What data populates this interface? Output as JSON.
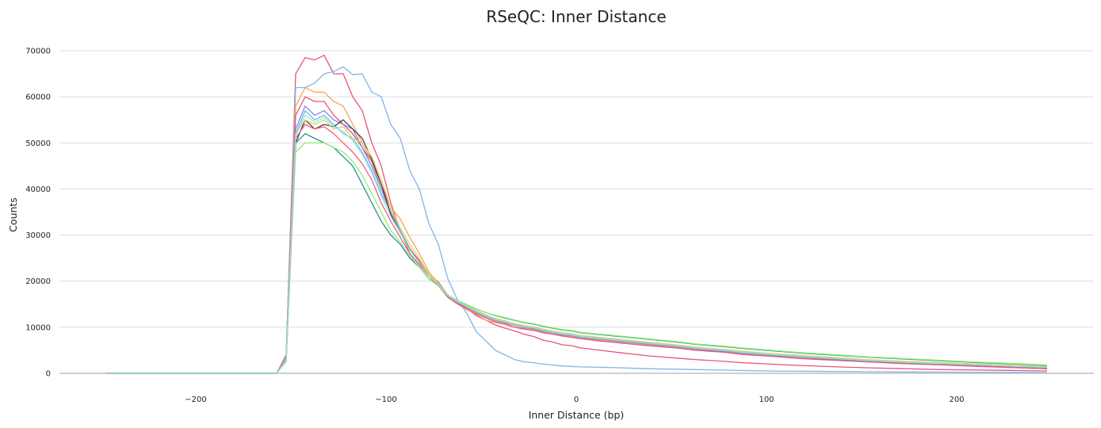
{
  "chart_data": {
    "type": "line",
    "title": "RSeQC: Inner Distance",
    "xlabel": "Inner Distance (bp)",
    "ylabel": "Counts",
    "xlim": [
      -250,
      250
    ],
    "ylim": [
      0,
      70000
    ],
    "xticks": [
      -200,
      -100,
      0,
      100,
      200
    ],
    "yticks": [
      0,
      10000,
      20000,
      30000,
      40000,
      50000,
      60000,
      70000
    ],
    "grid": true,
    "legend": "none",
    "x": [
      -247.5,
      -157.5,
      -152.5,
      -147.5,
      -142.5,
      -137.5,
      -132.5,
      -127.5,
      -122.5,
      -117.5,
      -112.5,
      -107.5,
      -102.5,
      -97.5,
      -92.5,
      -87.5,
      -82.5,
      -77.5,
      -72.5,
      -67.5,
      -62.5,
      -57.5,
      -52.5,
      -47.5,
      -42.5,
      -37.5,
      -32.5,
      -27.5,
      -22.5,
      -17.5,
      -12.5,
      -7.5,
      -2.5,
      2.5,
      12.5,
      22.5,
      37.5,
      52.5,
      62.5,
      77.5,
      87.5,
      102.5,
      117.5,
      137.5,
      152.5,
      172.5,
      192.5,
      212.5,
      232.5,
      247.5
    ],
    "series": [
      {
        "color": "#e8537a",
        "values": [
          0,
          0,
          4000,
          65000,
          68500,
          68000,
          69000,
          65000,
          65000,
          60000,
          57000,
          50000,
          45000,
          37000,
          31000,
          26000,
          23500,
          21500,
          19800,
          17000,
          15500,
          14000,
          12500,
          11500,
          10500,
          9800,
          9200,
          8500,
          8000,
          7200,
          6800,
          6200,
          6000,
          5500,
          5000,
          4500,
          3800,
          3300,
          3000,
          2600,
          2300,
          2000,
          1700,
          1400,
          1200,
          1000,
          800,
          700,
          600,
          500
        ]
      },
      {
        "color": "#7cb5ec",
        "values": [
          0,
          0,
          3500,
          62000,
          62000,
          63000,
          65000,
          65500,
          66500,
          64800,
          65000,
          61000,
          60000,
          54000,
          51000,
          44000,
          40000,
          32500,
          28000,
          20500,
          16000,
          13000,
          9000,
          7000,
          5000,
          4000,
          3000,
          2500,
          2300,
          2000,
          1800,
          1600,
          1500,
          1400,
          1300,
          1200,
          1000,
          900,
          800,
          700,
          600,
          500,
          450,
          400,
          350,
          300,
          250,
          200,
          200,
          150
        ]
      },
      {
        "color": "#f7a35c",
        "values": [
          0,
          0,
          3200,
          58000,
          62000,
          61000,
          61000,
          59000,
          58000,
          54000,
          50000,
          46000,
          40000,
          36000,
          33500,
          29500,
          26000,
          22000,
          19500,
          16500,
          15000,
          13800,
          12800,
          11500,
          11000,
          10500,
          10000,
          9800,
          9500,
          9000,
          8500,
          8200,
          8000,
          7600,
          7200,
          6800,
          6200,
          5600,
          5100,
          4600,
          4200,
          3800,
          3400,
          2900,
          2500,
          2200,
          1800,
          1500,
          1200,
          1000
        ]
      },
      {
        "color": "#e8537a",
        "values": [
          0,
          0,
          3000,
          56000,
          60000,
          59000,
          59000,
          56000,
          54000,
          52000,
          49000,
          46000,
          41000,
          36000,
          31000,
          27000,
          24500,
          21000,
          19000,
          16500,
          15200,
          14000,
          13000,
          12000,
          11200,
          10800,
          10000,
          9600,
          9300,
          8800,
          8500,
          8100,
          7800,
          7500,
          7000,
          6600,
          6000,
          5500,
          5000,
          4600,
          4100,
          3700,
          3200,
          2800,
          2500,
          2100,
          1800,
          1500,
          1200,
          1000
        ]
      },
      {
        "color": "#8085e9",
        "values": [
          0,
          0,
          3000,
          53000,
          58000,
          56000,
          57000,
          55000,
          54000,
          53000,
          49000,
          45000,
          40000,
          35000,
          31000,
          27000,
          24000,
          21000,
          19500,
          16800,
          15500,
          14300,
          13300,
          12300,
          11500,
          11000,
          10400,
          10000,
          9700,
          9200,
          8800,
          8400,
          8200,
          7800,
          7400,
          7000,
          6400,
          5800,
          5300,
          4800,
          4400,
          3900,
          3500,
          3000,
          2700,
          2300,
          2000,
          1700,
          1400,
          1200
        ]
      },
      {
        "color": "#7cb5ec",
        "values": [
          0,
          0,
          3000,
          52000,
          57000,
          55000,
          56000,
          54000,
          52000,
          51000,
          48000,
          44000,
          39000,
          35000,
          31000,
          27000,
          24000,
          21000,
          19500,
          16800,
          15500,
          14400,
          13400,
          12400,
          11600,
          11100,
          10500,
          10100,
          9800,
          9300,
          8900,
          8500,
          8300,
          7900,
          7500,
          7100,
          6500,
          5900,
          5400,
          4900,
          4500,
          4000,
          3600,
          3100,
          2800,
          2400,
          2100,
          1800,
          1500,
          1300
        ]
      },
      {
        "color": "#434348",
        "values": [
          0,
          0,
          2800,
          50000,
          55000,
          53000,
          54000,
          53500,
          55000,
          53000,
          51000,
          46500,
          41000,
          34500,
          30500,
          27000,
          24000,
          21000,
          19500,
          17000,
          15700,
          14600,
          13600,
          12600,
          11800,
          11300,
          10700,
          10300,
          10000,
          9500,
          9100,
          8700,
          8500,
          8100,
          7700,
          7300,
          6700,
          6100,
          5600,
          5100,
          4700,
          4200,
          3800,
          3300,
          2900,
          2500,
          2200,
          1900,
          1600,
          1400
        ]
      },
      {
        "color": "#e4d354",
        "values": [
          0,
          0,
          2800,
          52000,
          55000,
          54000,
          55000,
          53000,
          53500,
          51000,
          50000,
          47000,
          42000,
          36000,
          31500,
          28000,
          25000,
          21500,
          19500,
          17000,
          15800,
          14700,
          13700,
          12700,
          11900,
          11400,
          10800,
          10400,
          10100,
          9600,
          9200,
          8800,
          8600,
          8200,
          7800,
          7400,
          6800,
          6200,
          5700,
          5200,
          4800,
          4300,
          3900,
          3400,
          3000,
          2600,
          2300,
          2000,
          1700,
          1500
        ]
      },
      {
        "color": "#2b908f",
        "values": [
          0,
          0,
          2800,
          50000,
          52000,
          51000,
          50000,
          49000,
          47000,
          45000,
          41000,
          37000,
          33000,
          30000,
          28000,
          25000,
          23000,
          20500,
          19000,
          16800,
          15800,
          14900,
          14000,
          13200,
          12500,
          12000,
          11500,
          11000,
          10700,
          10200,
          9800,
          9400,
          9200,
          8800,
          8400,
          8000,
          7400,
          6800,
          6300,
          5800,
          5400,
          4900,
          4400,
          3900,
          3500,
          3100,
          2700,
          2300,
          2000,
          1700
        ]
      },
      {
        "color": "#90ed7d",
        "values": [
          0,
          0,
          2500,
          48000,
          50000,
          50000,
          50000,
          49000,
          48000,
          46000,
          43000,
          39000,
          35000,
          31000,
          28500,
          25500,
          23000,
          20500,
          19000,
          16800,
          15800,
          14900,
          14000,
          13200,
          12600,
          12100,
          11600,
          11100,
          10800,
          10300,
          9900,
          9500,
          9300,
          8900,
          8500,
          8100,
          7500,
          6900,
          6400,
          5900,
          5500,
          5000,
          4500,
          4000,
          3600,
          3200,
          2800,
          2400,
          2100,
          1800
        ]
      },
      {
        "color": "#f15c80",
        "values": [
          0,
          0,
          2700,
          51000,
          54000,
          53000,
          53500,
          52000,
          50000,
          48000,
          45500,
          42000,
          37000,
          33000,
          29500,
          26000,
          23500,
          21000,
          19300,
          16900,
          15600,
          14500,
          13500,
          12500,
          11700,
          11200,
          10600,
          10200,
          9900,
          9400,
          9000,
          8600,
          8400,
          8000,
          7600,
          7200,
          6600,
          6000,
          5500,
          5000,
          4600,
          4100,
          3700,
          3200,
          2800,
          2400,
          2100,
          1800,
          1500,
          1300
        ]
      },
      {
        "color": "#91e8e1",
        "values": [
          0,
          0,
          2700,
          51500,
          56000,
          54500,
          55500,
          53500,
          52500,
          50500,
          47500,
          43500,
          38500,
          34000,
          30500,
          26800,
          24000,
          21000,
          19400,
          16900,
          15600,
          14500,
          13500,
          12500,
          11700,
          11200,
          10600,
          10200,
          9900,
          9400,
          9000,
          8600,
          8400,
          8000,
          7600,
          7200,
          6600,
          6000,
          5500,
          5000,
          4600,
          4100,
          3700,
          3200,
          2800,
          2400,
          2100,
          1800,
          1500,
          1300
        ]
      }
    ]
  }
}
